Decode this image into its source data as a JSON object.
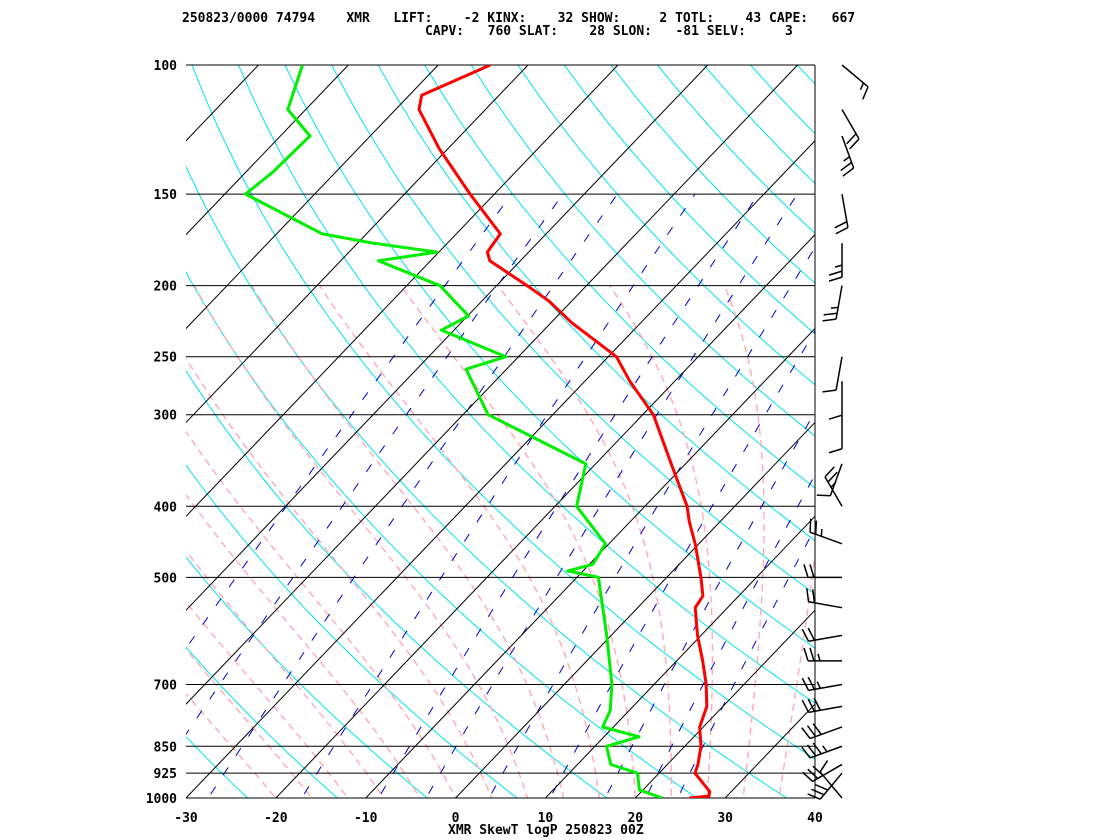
{
  "header": {
    "line1": "250823/0000 74794    XMR   LIFT:    -2 KINX:    32 SHOW:     2 TOTL:    43 CAPE:   667",
    "line2": "CAPV:   760 SLAT:    28 SLON:   -81 SELV:     3"
  },
  "footer": "XMR SkewT logP 250823 00Z",
  "colors": {
    "temperature": "#ff0000",
    "dewpoint": "#00ee00",
    "isotherm": "#000000",
    "dry_adiabat": "#00e5ee",
    "moist_adiabat": "#ffaab4",
    "mixing_ratio": "#0000cc",
    "isobar": "#000000",
    "wind_barb": "#000000"
  },
  "chart_data": {
    "type": "line",
    "title": "",
    "xlabel": "",
    "ylabel": "",
    "yscale": "log",
    "xlim": [
      -30,
      40
    ],
    "ylim": [
      1000,
      100
    ],
    "x_ticks": [
      -30,
      -20,
      -10,
      0,
      10,
      20,
      30,
      40
    ],
    "x_tick_labels": [
      "-30",
      "-20",
      "-10",
      "0",
      "10",
      "20",
      "30",
      "40"
    ],
    "y_ticks": [
      1000,
      925,
      850,
      700,
      500,
      400,
      300,
      250,
      200,
      150,
      100
    ],
    "y_tick_labels": [
      "1000",
      "925",
      "850",
      "700",
      "500",
      "400",
      "300",
      "250",
      "200",
      "150",
      "100"
    ],
    "series": [
      {
        "pressure": [
          1000,
          994,
          980,
          925,
          900,
          850,
          800,
          750,
          700,
          650,
          600,
          550,
          530,
          500,
          450,
          420,
          400,
          350,
          300,
          270,
          250,
          237,
          225,
          210,
          200,
          185,
          180,
          170,
          150,
          130,
          115,
          110,
          100
        ],
        "temperature": [
          26,
          28,
          27.6,
          24,
          23.4,
          21.8,
          19.6,
          18.2,
          15.8,
          12.9,
          9.6,
          6.4,
          6,
          3.8,
          -0.4,
          -3.4,
          -5.3,
          -11.6,
          -18.8,
          -25,
          -29.1,
          -33.4,
          -37.6,
          -42.5,
          -46.6,
          -53.4,
          -54.6,
          -55.1,
          -62.7,
          -71,
          -77.4,
          -78.6,
          -74.2
        ]
      },
      {
        "pressure": [
          1000,
          975,
          925,
          900,
          850,
          825,
          800,
          760,
          700,
          600,
          500,
          490,
          480,
          450,
          400,
          350,
          300,
          260,
          250,
          230,
          220,
          200,
          185,
          180,
          175,
          170,
          150,
          140,
          125,
          115,
          100
        ],
        "dewpoint": [
          23,
          19.6,
          17.6,
          13.7,
          11.3,
          13.9,
          8.8,
          7.9,
          5.3,
          -0.5,
          -7.6,
          -11.7,
          -9.6,
          -10.4,
          -17.6,
          -21.1,
          -37.2,
          -44.5,
          -41.4,
          -51.4,
          -49.9,
          -56.3,
          -65.8,
          -60.2,
          -68.3,
          -74.9,
          -87.7,
          -87,
          -86.7,
          -92,
          -95.1
        ]
      }
    ],
    "wind_barbs": {
      "pressure": [
        1000,
        925,
        900,
        850,
        800,
        750,
        700,
        650,
        600,
        550,
        500,
        450,
        400,
        350,
        300,
        270,
        250,
        200,
        175,
        150,
        125,
        115,
        100
      ],
      "direction_deg": [
        320,
        220,
        240,
        250,
        250,
        260,
        260,
        270,
        260,
        280,
        270,
        290,
        330,
        200,
        180,
        180,
        190,
        190,
        180,
        170,
        160,
        150,
        130
      ],
      "speed_kt": [
        10,
        30,
        30,
        35,
        30,
        30,
        25,
        25,
        20,
        20,
        20,
        25,
        25,
        10,
        10,
        10,
        10,
        25,
        25,
        20,
        25,
        20,
        15
      ]
    }
  }
}
